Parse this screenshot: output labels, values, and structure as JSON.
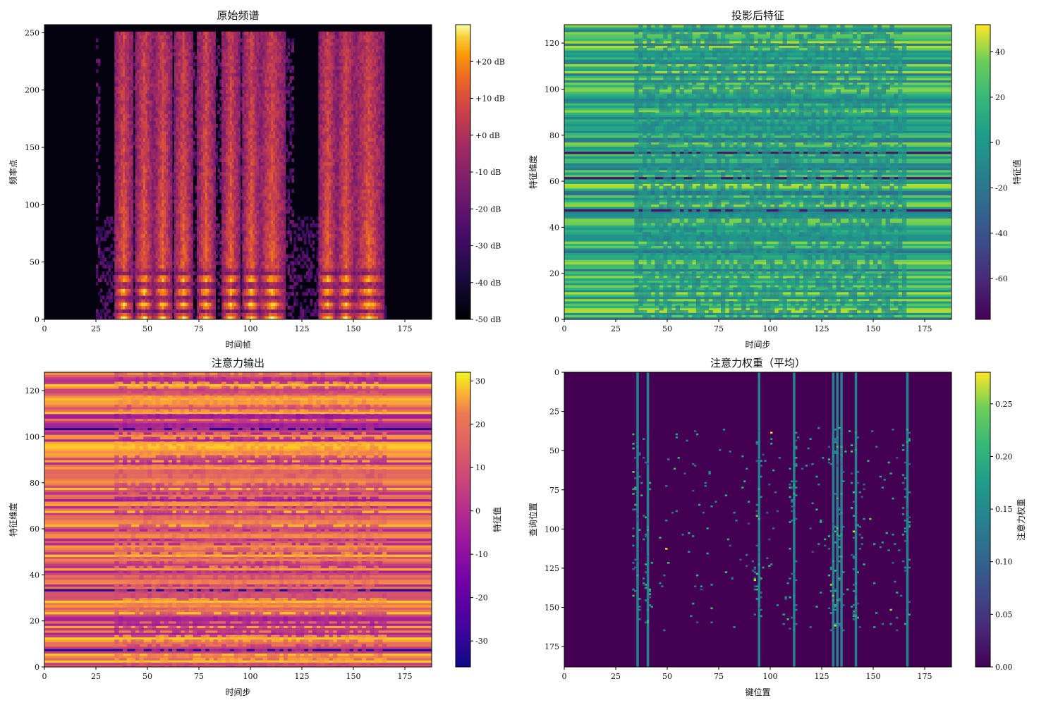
{
  "chart_data": [
    {
      "type": "heatmap",
      "title": "原始频谱",
      "xlabel": "时间帧",
      "ylabel": "频率点",
      "xlim": [
        0,
        188
      ],
      "ylim": [
        0,
        257
      ],
      "x_origin": "bottom",
      "xticks": [
        "0",
        "25",
        "50",
        "75",
        "100",
        "125",
        "150",
        "175"
      ],
      "yticks": [
        "0",
        "50",
        "100",
        "150",
        "200",
        "250"
      ],
      "colormap": "inferno",
      "colorbar": {
        "label": "",
        "range": [
          -50,
          30
        ],
        "ticks": [
          "+20 dB",
          "+10 dB",
          "+0 dB",
          "-10 dB",
          "-20 dB",
          "-30 dB",
          "-40 dB",
          "-50 dB"
        ],
        "tick_values": [
          20,
          10,
          0,
          -10,
          -20,
          -30,
          -40,
          -50
        ]
      },
      "features": {
        "voiced_segment_frames": [
          [
            34,
            42
          ],
          [
            44,
            52
          ],
          [
            53,
            61
          ],
          [
            63,
            71
          ],
          [
            74,
            82
          ],
          [
            86,
            94
          ],
          [
            96,
            104
          ],
          [
            104,
            116
          ],
          [
            133,
            141
          ],
          [
            142,
            150
          ],
          [
            150,
            164
          ]
        ],
        "active_frame_range": [
          25,
          165
        ],
        "max_frequency_bin_active": 250
      }
    },
    {
      "type": "heatmap",
      "title": "投影后特征",
      "xlabel": "时间步",
      "ylabel": "特征维度",
      "xlim": [
        0,
        188
      ],
      "ylim": [
        0,
        128
      ],
      "xticks": [
        "0",
        "25",
        "50",
        "75",
        "100",
        "125",
        "150",
        "175"
      ],
      "yticks": [
        "0",
        "20",
        "40",
        "60",
        "80",
        "100",
        "120"
      ],
      "colormap": "viridis",
      "colorbar": {
        "label": "特征值",
        "range": [
          -78,
          52
        ],
        "ticks": [
          "40",
          "20",
          "0",
          "-20",
          "-40",
          "-60"
        ],
        "tick_values": [
          40,
          20,
          0,
          -20,
          -40,
          -60
        ]
      }
    },
    {
      "type": "heatmap",
      "title": "注意力输出",
      "xlabel": "时间步",
      "ylabel": "特征维度",
      "xlim": [
        0,
        188
      ],
      "ylim": [
        0,
        128
      ],
      "xticks": [
        "0",
        "25",
        "50",
        "75",
        "100",
        "125",
        "150",
        "175"
      ],
      "yticks": [
        "0",
        "20",
        "40",
        "60",
        "80",
        "100",
        "120"
      ],
      "colormap": "plasma",
      "colorbar": {
        "label": "特征值",
        "range": [
          -36,
          32
        ],
        "ticks": [
          "30",
          "20",
          "10",
          "0",
          "-10",
          "-20",
          "-30"
        ],
        "tick_values": [
          30,
          20,
          10,
          0,
          -10,
          -20,
          -30
        ]
      }
    },
    {
      "type": "heatmap",
      "title": "注意力权重（平均）",
      "xlabel": "键位置",
      "ylabel": "查询位置",
      "xlim": [
        0,
        188
      ],
      "ylim": [
        188,
        0
      ],
      "xticks": [
        "0",
        "25",
        "50",
        "75",
        "100",
        "125",
        "150",
        "175"
      ],
      "yticks": [
        "0",
        "25",
        "50",
        "75",
        "100",
        "125",
        "150",
        "175"
      ],
      "colormap": "viridis",
      "colorbar": {
        "label": "注意力权重",
        "range": [
          0,
          0.28
        ],
        "ticks": [
          "0.25",
          "0.20",
          "0.15",
          "0.10",
          "0.05",
          "0.00"
        ],
        "tick_values": [
          0.25,
          0.2,
          0.15,
          0.1,
          0.05,
          0
        ]
      },
      "features": {
        "key_columns_high_attention": [
          35,
          40,
          94,
          111,
          130,
          132,
          134,
          141,
          166
        ]
      }
    }
  ]
}
